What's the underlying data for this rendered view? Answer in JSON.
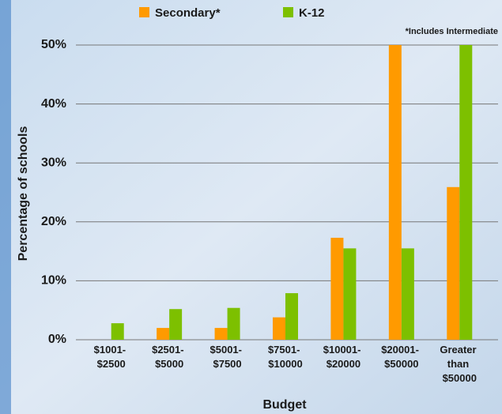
{
  "chart_data": {
    "type": "bar",
    "x_label": "Budget",
    "y_label": "Percentage of schools",
    "annotation": "*Includes Intermediate",
    "categories": [
      "$1001- $2500",
      "$2501- $5000",
      "$5001- $7500",
      "$7501- $10000",
      "$10001- $20000",
      "$20001- $50000",
      "Greater than $50000"
    ],
    "series": [
      {
        "name": "Secondary*",
        "color": "#ff9a00",
        "values": [
          0,
          2.0,
          2.0,
          3.8,
          17.3,
          50,
          25.9
        ]
      },
      {
        "name": "K-12",
        "color": "#7dc000",
        "values": [
          2.8,
          5.2,
          5.4,
          7.9,
          15.5,
          15.5,
          50
        ]
      }
    ],
    "ylim": [
      0,
      50
    ],
    "yticks": [
      {
        "value": 0,
        "label": "0%"
      },
      {
        "value": 10,
        "label": "10%"
      },
      {
        "value": 20,
        "label": "20%"
      },
      {
        "value": 30,
        "label": "30%"
      },
      {
        "value": 40,
        "label": "40%"
      },
      {
        "value": 50,
        "label": "50%"
      }
    ],
    "grid": true
  }
}
